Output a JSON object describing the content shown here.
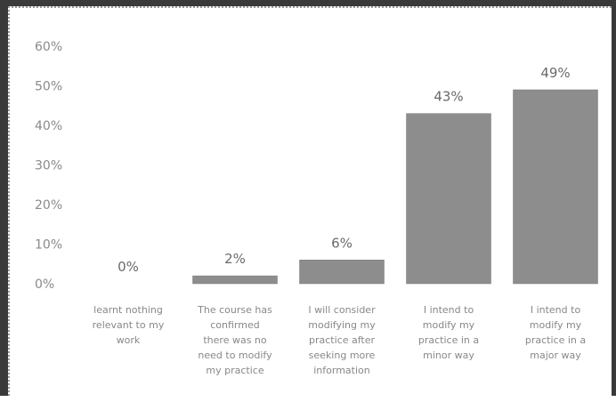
{
  "chart_data": {
    "type": "bar",
    "categories": [
      "I learnt nothing relevant to my work",
      "The course has confirmed there was no need to modify my practice",
      "I will consider modifying my practice after seeking more information",
      "I intend to modify my practice in a minor way",
      "I intend to modify my practice in a major way"
    ],
    "category_lines": [
      [
        "learnt nothing",
        "relevant to my",
        "work"
      ],
      [
        "The course has",
        "confirmed",
        "there was no",
        "need to modify",
        "my practice"
      ],
      [
        "I will consider",
        "modifying my",
        "practice after",
        "seeking more",
        "information"
      ],
      [
        "I intend to",
        "modify my",
        "practice in a",
        "minor way"
      ],
      [
        "I intend to",
        "modify my",
        "practice in a",
        "major way"
      ]
    ],
    "values": [
      0,
      2,
      6,
      43,
      49
    ],
    "data_labels": [
      "0%",
      "2%",
      "6%",
      "43%",
      "49%"
    ],
    "y_ticks": [
      "0%",
      "10%",
      "20%",
      "30%",
      "40%",
      "50%",
      "60%"
    ],
    "ylim": [
      0,
      60
    ],
    "grid": false,
    "bar_color": "#8d8d8d"
  }
}
